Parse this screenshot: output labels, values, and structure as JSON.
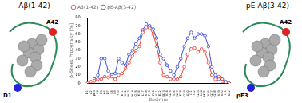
{
  "chart_data": {
    "type": "line",
    "x_label": "Residue",
    "y_label": "β-Sheet Propensity [%]",
    "categories": [
      "D1",
      "A2",
      "pE3",
      "F4",
      "R5",
      "H6",
      "D7",
      "S8",
      "G9",
      "Y10",
      "E11",
      "V12",
      "H13",
      "H14",
      "Q15",
      "K16",
      "L17",
      "V18",
      "F19",
      "F20",
      "A21",
      "E22",
      "D23",
      "V24",
      "G25",
      "S26",
      "N27",
      "K28",
      "G29",
      "A30",
      "I31",
      "I32",
      "G33",
      "L34",
      "M35",
      "V36",
      "G37",
      "G38",
      "V39",
      "V40",
      "I41",
      "A42"
    ],
    "series": [
      {
        "name": "Aβ(1-42)",
        "color": "#e8312b",
        "marker": "open circle",
        "values": [
          0,
          2,
          3,
          5,
          5,
          8,
          7,
          8,
          5,
          10,
          12,
          18,
          25,
          33,
          40,
          45,
          62,
          68,
          67,
          60,
          45,
          25,
          10,
          8,
          5,
          5,
          5,
          8,
          20,
          35,
          42,
          43,
          38,
          42,
          38,
          25,
          10,
          5,
          8,
          2,
          1,
          0
        ]
      },
      {
        "name": "pE-Aβ(3-42)",
        "color": "#2b3fd6",
        "marker": "open circle",
        "values": [
          null,
          null,
          5,
          10,
          30,
          30,
          15,
          10,
          12,
          30,
          25,
          22,
          35,
          40,
          48,
          55,
          65,
          72,
          70,
          66,
          55,
          35,
          30,
          22,
          15,
          10,
          20,
          30,
          45,
          55,
          62,
          55,
          60,
          60,
          58,
          45,
          20,
          10,
          5,
          5,
          2,
          0
        ]
      }
    ],
    "ylim": [
      0,
      80
    ],
    "yticks": [
      0,
      10,
      20,
      30,
      40,
      50,
      60,
      70,
      80
    ],
    "grid": false,
    "legend": "upper left"
  },
  "left_panel": {
    "title": "Aβ(1-42)",
    "labels": [
      "A42",
      "D1"
    ]
  },
  "right_panel": {
    "title": "pE-Aβ(3-42)",
    "labels": [
      "A42",
      "pE3"
    ]
  }
}
